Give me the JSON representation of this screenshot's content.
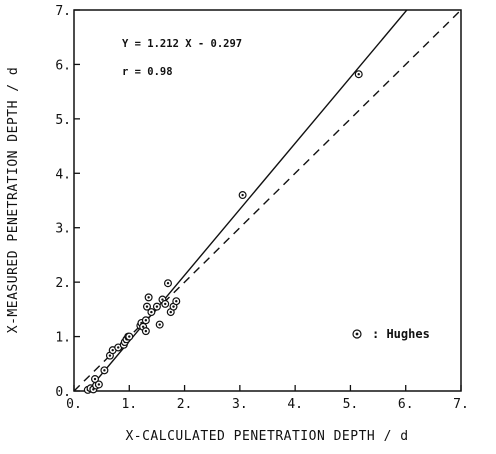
{
  "chart_data": {
    "type": "scatter",
    "xlabel": "X-CALCULATED PENETRATION DEPTH / d",
    "ylabel": "X-MEASURED PENETRATION DEPTH / d",
    "xlim": [
      0,
      7
    ],
    "ylim": [
      0,
      7
    ],
    "x_ticks": [
      "0.",
      "1.",
      "2.",
      "3.",
      "4.",
      "5.",
      "6.",
      "7."
    ],
    "y_ticks": [
      "0.",
      "1.",
      "2.",
      "3.",
      "4.",
      "5.",
      "6.",
      "7."
    ],
    "grid": false,
    "legend_position": "lower-right",
    "annotations": [
      "Y = 1.212 X - 0.297",
      "r = 0.98"
    ],
    "series": [
      {
        "name": ": Hughes",
        "marker": "circle-dot",
        "points": [
          [
            0.25,
            0.02
          ],
          [
            0.3,
            0.05
          ],
          [
            0.35,
            0.03
          ],
          [
            0.4,
            0.1
          ],
          [
            0.38,
            0.22
          ],
          [
            0.45,
            0.12
          ],
          [
            0.55,
            0.38
          ],
          [
            0.65,
            0.65
          ],
          [
            0.7,
            0.75
          ],
          [
            0.8,
            0.8
          ],
          [
            0.9,
            0.85
          ],
          [
            0.92,
            0.9
          ],
          [
            0.95,
            0.95
          ],
          [
            0.98,
            1.0
          ],
          [
            1.0,
            1.0
          ],
          [
            1.2,
            1.2
          ],
          [
            1.22,
            1.25
          ],
          [
            1.25,
            1.18
          ],
          [
            1.3,
            1.3
          ],
          [
            1.3,
            1.1
          ],
          [
            1.32,
            1.55
          ],
          [
            1.35,
            1.72
          ],
          [
            1.4,
            1.45
          ],
          [
            1.5,
            1.55
          ],
          [
            1.55,
            1.22
          ],
          [
            1.6,
            1.68
          ],
          [
            1.65,
            1.6
          ],
          [
            1.7,
            1.98
          ],
          [
            1.75,
            1.45
          ],
          [
            1.8,
            1.55
          ],
          [
            1.85,
            1.65
          ],
          [
            3.05,
            3.6
          ],
          [
            5.15,
            5.82
          ]
        ]
      }
    ],
    "lines": [
      {
        "kind": "regression",
        "style": "solid",
        "slope": 1.212,
        "intercept": -0.297
      },
      {
        "kind": "identity",
        "style": "dashed",
        "slope": 1.0,
        "intercept": 0.0
      }
    ]
  }
}
